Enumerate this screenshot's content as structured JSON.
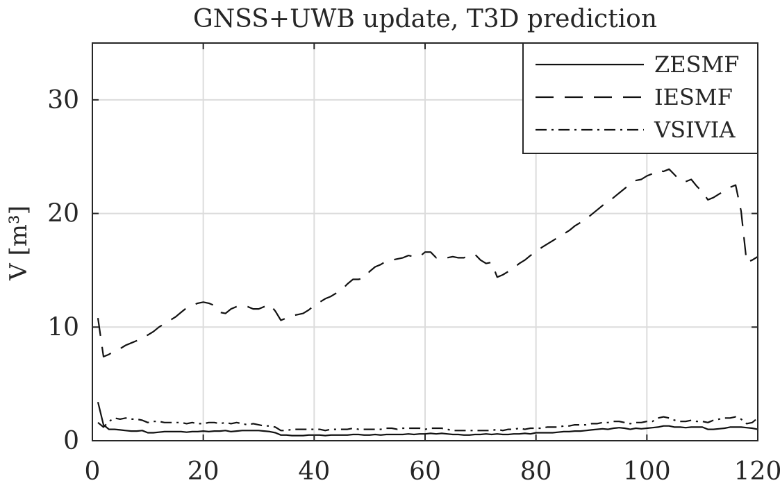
{
  "chart_data": {
    "type": "line",
    "title": "GNSS+UWB update, T3D prediction",
    "xlabel": "",
    "ylabel": "V [m³]",
    "xlim": [
      0,
      120
    ],
    "ylim": [
      0,
      35
    ],
    "xticks": [
      "0",
      "20",
      "40",
      "60",
      "80",
      "100",
      "120"
    ],
    "yticks": [
      "0",
      "10",
      "20",
      "30"
    ],
    "grid": true,
    "legend_position": "top-right",
    "x": [
      1,
      2,
      3,
      4,
      5,
      6,
      7,
      8,
      9,
      10,
      11,
      12,
      13,
      14,
      15,
      16,
      17,
      18,
      19,
      20,
      21,
      22,
      23,
      24,
      25,
      26,
      27,
      28,
      29,
      30,
      31,
      32,
      33,
      34,
      35,
      36,
      37,
      38,
      39,
      40,
      41,
      42,
      43,
      44,
      45,
      46,
      47,
      48,
      49,
      50,
      51,
      52,
      53,
      54,
      55,
      56,
      57,
      58,
      59,
      60,
      61,
      62,
      63,
      64,
      65,
      66,
      67,
      68,
      69,
      70,
      71,
      72,
      73,
      74,
      75,
      76,
      77,
      78,
      79,
      80,
      81,
      82,
      83,
      84,
      85,
      86,
      87,
      88,
      89,
      90,
      91,
      92,
      93,
      94,
      95,
      96,
      97,
      98,
      99,
      100,
      101,
      102,
      103,
      104,
      105,
      106,
      107,
      108,
      109,
      110,
      111,
      112,
      113,
      114,
      115,
      116,
      117,
      118,
      119,
      120
    ],
    "series": [
      {
        "name": "ZESMF",
        "style": "solid",
        "values": [
          3.4,
          1.4,
          1.0,
          1.0,
          0.95,
          0.9,
          0.85,
          0.85,
          0.9,
          0.7,
          0.7,
          0.75,
          0.8,
          0.8,
          0.8,
          0.8,
          0.75,
          0.8,
          0.8,
          0.85,
          0.8,
          0.85,
          0.85,
          0.9,
          0.8,
          0.85,
          0.9,
          0.9,
          0.9,
          0.9,
          0.85,
          0.8,
          0.7,
          0.5,
          0.5,
          0.45,
          0.45,
          0.45,
          0.5,
          0.5,
          0.5,
          0.45,
          0.5,
          0.5,
          0.5,
          0.5,
          0.55,
          0.55,
          0.5,
          0.5,
          0.55,
          0.5,
          0.55,
          0.55,
          0.55,
          0.55,
          0.6,
          0.55,
          0.6,
          0.6,
          0.65,
          0.6,
          0.65,
          0.6,
          0.55,
          0.55,
          0.5,
          0.5,
          0.55,
          0.55,
          0.6,
          0.55,
          0.6,
          0.55,
          0.55,
          0.6,
          0.6,
          0.65,
          0.6,
          0.7,
          0.7,
          0.7,
          0.7,
          0.75,
          0.8,
          0.8,
          0.85,
          0.85,
          0.9,
          0.95,
          1.0,
          1.05,
          1.0,
          1.1,
          1.15,
          1.1,
          1.0,
          1.1,
          1.05,
          1.1,
          1.15,
          1.2,
          1.3,
          1.3,
          1.2,
          1.2,
          1.15,
          1.2,
          1.2,
          1.2,
          1.0,
          1.0,
          1.05,
          1.1,
          1.2,
          1.2,
          1.2,
          1.15,
          1.1,
          1.0
        ]
      },
      {
        "name": "IESMF",
        "style": "dashed",
        "values": [
          10.8,
          7.4,
          7.6,
          7.9,
          8.1,
          8.4,
          8.6,
          8.8,
          9.1,
          9.3,
          9.6,
          10.0,
          10.3,
          10.6,
          10.9,
          11.3,
          11.7,
          11.9,
          12.1,
          12.2,
          12.1,
          11.9,
          11.3,
          11.2,
          11.6,
          11.8,
          11.9,
          11.8,
          11.6,
          11.6,
          11.8,
          12.0,
          11.4,
          10.6,
          10.8,
          11.0,
          11.1,
          11.2,
          11.5,
          11.9,
          12.2,
          12.5,
          12.7,
          13.0,
          13.3,
          13.8,
          14.2,
          14.2,
          14.3,
          14.9,
          15.3,
          15.5,
          15.8,
          15.9,
          16.0,
          16.1,
          16.3,
          16.2,
          16.2,
          16.6,
          16.6,
          16.1,
          16.2,
          16.1,
          16.2,
          16.1,
          16.1,
          16.3,
          16.4,
          15.9,
          15.6,
          15.7,
          14.4,
          14.6,
          14.9,
          15.2,
          15.6,
          15.9,
          16.3,
          16.6,
          17.0,
          17.3,
          17.6,
          17.9,
          18.2,
          18.5,
          18.9,
          19.2,
          19.5,
          19.9,
          20.3,
          20.7,
          21.0,
          21.4,
          21.8,
          22.2,
          22.6,
          22.9,
          23.0,
          23.3,
          23.5,
          23.8,
          23.7,
          23.9,
          23.4,
          22.9,
          22.8,
          23.0,
          22.4,
          21.9,
          21.2,
          21.4,
          21.7,
          22.0,
          22.3,
          22.5,
          20.2,
          15.7,
          15.9,
          16.2
        ]
      },
      {
        "name": "VSIVIA",
        "style": "dashdot",
        "values": [
          1.6,
          1.2,
          1.7,
          2.0,
          1.9,
          2.0,
          1.9,
          1.9,
          1.8,
          1.6,
          1.7,
          1.7,
          1.6,
          1.6,
          1.6,
          1.6,
          1.5,
          1.6,
          1.5,
          1.5,
          1.6,
          1.6,
          1.5,
          1.6,
          1.5,
          1.6,
          1.5,
          1.4,
          1.5,
          1.4,
          1.3,
          1.3,
          1.2,
          0.9,
          0.9,
          1.0,
          1.0,
          1.0,
          1.0,
          1.0,
          1.0,
          0.9,
          1.0,
          1.0,
          1.0,
          1.0,
          1.1,
          1.0,
          1.0,
          1.0,
          1.0,
          1.0,
          1.1,
          1.1,
          1.0,
          1.1,
          1.1,
          1.1,
          1.1,
          1.0,
          1.1,
          1.1,
          1.1,
          1.0,
          0.9,
          0.9,
          0.9,
          0.9,
          0.9,
          0.9,
          0.9,
          0.9,
          1.0,
          0.9,
          1.0,
          1.0,
          1.1,
          1.0,
          1.1,
          1.1,
          1.1,
          1.2,
          1.2,
          1.2,
          1.3,
          1.3,
          1.4,
          1.4,
          1.4,
          1.5,
          1.5,
          1.6,
          1.6,
          1.7,
          1.7,
          1.6,
          1.5,
          1.6,
          1.6,
          1.7,
          1.7,
          2.0,
          2.1,
          2.0,
          1.8,
          1.7,
          1.7,
          1.8,
          1.7,
          1.7,
          1.6,
          1.8,
          1.9,
          2.0,
          2.0,
          2.1,
          1.9,
          1.5,
          1.6,
          2.0
        ]
      }
    ]
  }
}
